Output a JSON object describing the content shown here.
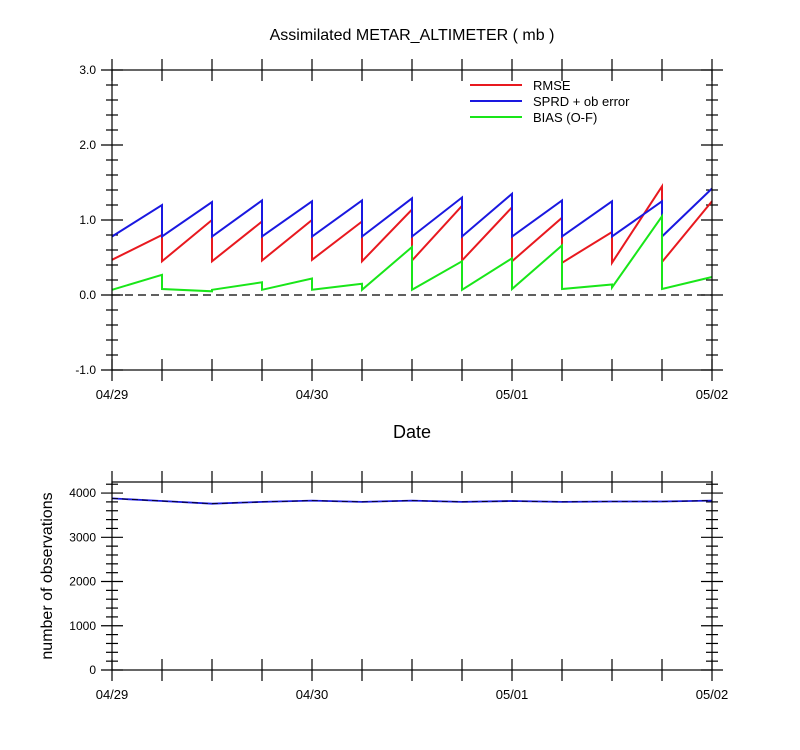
{
  "chart_data": [
    {
      "type": "line",
      "title": "Assimilated METAR_ALTIMETER ( mb )",
      "xlabel": "Date",
      "ylabel": "",
      "ylim": [
        -1.0,
        3.0
      ],
      "yticks": [
        -1.0,
        0.0,
        1.0,
        2.0,
        3.0
      ],
      "ytick_labels": [
        "-1.0",
        "0.0",
        "1.0",
        "2.0",
        "3.0"
      ],
      "xlim": [
        0,
        12
      ],
      "xticks": [
        0,
        4,
        8,
        12
      ],
      "xtick_labels": [
        "04/29",
        "04/30",
        "05/01",
        "05/02"
      ],
      "legend": "top-right",
      "reference_line": 0.0,
      "series": [
        {
          "name": "RMSE",
          "color": "#e8191f",
          "segments": [
            [
              [
                0,
                0.47
              ],
              [
                1,
                0.8
              ]
            ],
            [
              [
                1,
                0.45
              ],
              [
                2,
                1.0
              ]
            ],
            [
              [
                2,
                0.45
              ],
              [
                3,
                0.98
              ]
            ],
            [
              [
                3,
                0.46
              ],
              [
                4,
                1.0
              ]
            ],
            [
              [
                4,
                0.47
              ],
              [
                5,
                0.98
              ]
            ],
            [
              [
                5,
                0.45
              ],
              [
                6,
                1.14
              ]
            ],
            [
              [
                6,
                0.46
              ],
              [
                7,
                1.19
              ]
            ],
            [
              [
                7,
                0.46
              ],
              [
                8,
                1.17
              ]
            ],
            [
              [
                8,
                0.45
              ],
              [
                9,
                1.03
              ]
            ],
            [
              [
                9,
                0.43
              ],
              [
                10,
                0.84
              ]
            ],
            [
              [
                10,
                0.43
              ],
              [
                11,
                1.45
              ]
            ],
            [
              [
                11,
                0.44
              ],
              [
                12,
                1.25
              ]
            ]
          ]
        },
        {
          "name": "SPRD + ob error",
          "color": "#1a18e0",
          "segments": [
            [
              [
                0,
                0.78
              ],
              [
                1,
                1.2
              ]
            ],
            [
              [
                1,
                0.78
              ],
              [
                2,
                1.24
              ]
            ],
            [
              [
                2,
                0.78
              ],
              [
                3,
                1.26
              ]
            ],
            [
              [
                3,
                0.78
              ],
              [
                4,
                1.25
              ]
            ],
            [
              [
                4,
                0.78
              ],
              [
                5,
                1.26
              ]
            ],
            [
              [
                5,
                0.78
              ],
              [
                6,
                1.29
              ]
            ],
            [
              [
                6,
                0.78
              ],
              [
                7,
                1.3
              ]
            ],
            [
              [
                7,
                0.78
              ],
              [
                8,
                1.35
              ]
            ],
            [
              [
                8,
                0.78
              ],
              [
                9,
                1.26
              ]
            ],
            [
              [
                9,
                0.78
              ],
              [
                10,
                1.25
              ]
            ],
            [
              [
                10,
                0.78
              ],
              [
                11,
                1.25
              ]
            ],
            [
              [
                11,
                0.78
              ],
              [
                12,
                1.42
              ]
            ]
          ]
        },
        {
          "name": "BIAS (O-F)",
          "color": "#19e619",
          "segments": [
            [
              [
                0,
                0.07
              ],
              [
                1,
                0.27
              ]
            ],
            [
              [
                1,
                0.08
              ],
              [
                2,
                0.05
              ]
            ],
            [
              [
                2,
                0.07
              ],
              [
                3,
                0.17
              ]
            ],
            [
              [
                3,
                0.07
              ],
              [
                4,
                0.22
              ]
            ],
            [
              [
                4,
                0.07
              ],
              [
                5,
                0.15
              ]
            ],
            [
              [
                5,
                0.07
              ],
              [
                6,
                0.64
              ]
            ],
            [
              [
                6,
                0.07
              ],
              [
                7,
                0.45
              ]
            ],
            [
              [
                7,
                0.07
              ],
              [
                8,
                0.49
              ]
            ],
            [
              [
                8,
                0.08
              ],
              [
                9,
                0.66
              ]
            ],
            [
              [
                9,
                0.08
              ],
              [
                10,
                0.14
              ]
            ],
            [
              [
                10,
                0.1
              ],
              [
                11,
                1.05
              ]
            ],
            [
              [
                11,
                0.08
              ],
              [
                12,
                0.24
              ]
            ]
          ]
        }
      ]
    },
    {
      "type": "line",
      "title": "",
      "xlabel": "",
      "ylabel": "number of observations",
      "ylim": [
        0,
        4250
      ],
      "yticks": [
        0,
        1000,
        2000,
        3000,
        4000
      ],
      "ytick_labels": [
        "0",
        "1000",
        "2000",
        "3000",
        "4000"
      ],
      "xlim": [
        0,
        12
      ],
      "xticks": [
        0,
        4,
        8,
        12
      ],
      "xtick_labels": [
        "04/29",
        "04/30",
        "05/01",
        "05/02"
      ],
      "series": [
        {
          "color": "#1a18e0",
          "x": [
            0,
            1,
            2,
            3,
            4,
            5,
            6,
            7,
            8,
            9,
            10,
            11,
            12
          ],
          "values": [
            3880,
            3820,
            3760,
            3800,
            3830,
            3800,
            3830,
            3800,
            3820,
            3800,
            3810,
            3810,
            3830
          ]
        }
      ]
    }
  ]
}
